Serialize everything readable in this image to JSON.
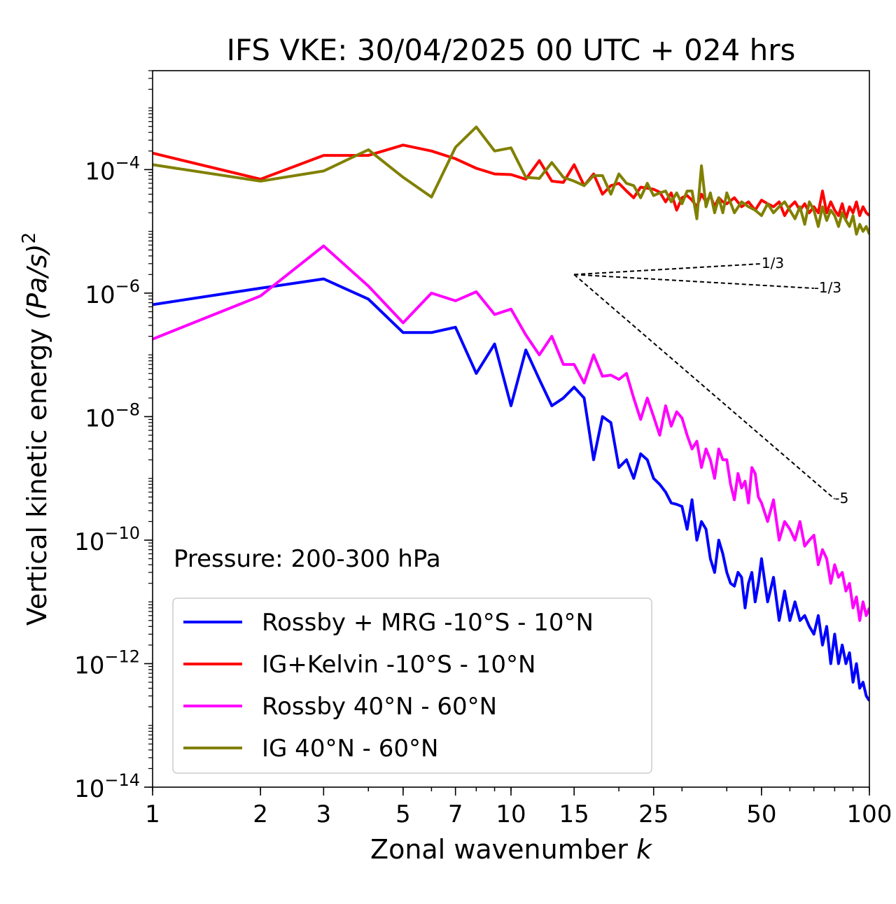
{
  "chart_data": {
    "type": "line",
    "title": "IFS VKE: 30/04/2025 00 UTC + 024 hrs",
    "xlabel": "Zonal wavenumber",
    "xlabel_symbol": "k",
    "ylabel": "Vertical kinetic energy",
    "ylabel_unit": "(Pa/s)",
    "ylabel_unit_exponent": "2",
    "xscale": "log",
    "yscale": "log",
    "xlim": [
      1,
      100
    ],
    "ylim": [
      1e-14,
      0.004
    ],
    "x_ticks": [
      1,
      2,
      3,
      5,
      7,
      10,
      15,
      25,
      50,
      100
    ],
    "x_tick_labels": [
      "1",
      "2",
      "3",
      "5",
      "7",
      "10",
      "15",
      "25",
      "50",
      "100"
    ],
    "y_ticks": [
      -14,
      -12,
      -10,
      -8,
      -6,
      -4
    ],
    "y_tick_base": "10",
    "y_tick_exponents": [
      "−14",
      "−12",
      "−10",
      "−8",
      "−6",
      "−4"
    ],
    "grid": false,
    "legend_placement": "lower-left",
    "annotation": "Pressure: 200-300 hPa",
    "slope_lines": [
      {
        "label": "1/3",
        "slope": 0.3333,
        "x0": 15,
        "y0": 2e-06,
        "x1": 50
      },
      {
        "label": "-1/3",
        "slope": -0.3333,
        "x0": 15,
        "y0": 2e-06,
        "x1": 70
      },
      {
        "label": "-5",
        "slope": -5,
        "x0": 15,
        "y0": 2e-06,
        "x1": 80
      }
    ],
    "series": [
      {
        "name": "Rossby + MRG -10°S - 10°N",
        "color": "#0000ff",
        "x": [
          1,
          2,
          3,
          4,
          5,
          6,
          7,
          8,
          9,
          10,
          11,
          12,
          13,
          14,
          15,
          16,
          17,
          18,
          19,
          20,
          21,
          22,
          23,
          24,
          25,
          26,
          27,
          28,
          29,
          30,
          31,
          32,
          33,
          34,
          35,
          36,
          37,
          38,
          39,
          40,
          41,
          42,
          43,
          44,
          45,
          46,
          47,
          48,
          49,
          50,
          52,
          54,
          56,
          58,
          60,
          62,
          64,
          66,
          68,
          70,
          72,
          74,
          76,
          78,
          80,
          82,
          84,
          86,
          88,
          90,
          92,
          94,
          96,
          98,
          100
        ],
        "y": [
          6.5e-07,
          1.2e-06,
          1.7e-06,
          8e-07,
          2.3e-07,
          2.3e-07,
          2.8e-07,
          5e-08,
          1.5e-07,
          1.5e-08,
          1.2e-07,
          4e-08,
          1.5e-08,
          2e-08,
          3e-08,
          2e-08,
          2e-09,
          1e-08,
          8e-09,
          1.5e-09,
          2e-09,
          1e-09,
          2.5e-09,
          2e-09,
          1e-09,
          8e-10,
          6e-10,
          4e-10,
          3.8e-10,
          3.5e-10,
          1.5e-10,
          4.5e-10,
          1e-10,
          2e-10,
          1.5e-10,
          5e-11,
          3e-11,
          1e-10,
          6e-11,
          3e-11,
          2e-11,
          1.8e-11,
          3e-11,
          2.5e-11,
          8e-12,
          2e-11,
          3e-11,
          1e-11,
          2e-11,
          5e-11,
          1e-11,
          2.5e-11,
          5e-12,
          1.5e-11,
          5e-12,
          1e-11,
          5e-12,
          6e-12,
          4e-12,
          3e-12,
          6e-12,
          2e-12,
          4e-12,
          1e-12,
          3e-12,
          1e-12,
          2e-12,
          1e-12,
          1.5e-12,
          5e-13,
          1e-12,
          4e-13,
          5e-13,
          3e-13,
          2.5e-13
        ]
      },
      {
        "name": "IG+Kelvin -10°S - 10°N",
        "color": "#ff0000",
        "x": [
          1,
          2,
          3,
          4,
          5,
          6,
          7,
          8,
          9,
          10,
          11,
          12,
          13,
          14,
          15,
          16,
          17,
          18,
          19,
          20,
          21,
          22,
          23,
          24,
          25,
          26,
          27,
          28,
          29,
          30,
          31,
          32,
          33,
          34,
          35,
          36,
          37,
          38,
          39,
          40,
          42,
          44,
          46,
          48,
          50,
          52,
          54,
          56,
          58,
          60,
          62,
          64,
          66,
          68,
          70,
          72,
          74,
          76,
          78,
          80,
          82,
          84,
          86,
          88,
          90,
          92,
          94,
          96,
          98,
          100
        ],
        "y": [
          0.000185,
          7e-05,
          0.00017,
          0.00017,
          0.00025,
          0.0002,
          0.00015,
          0.000105,
          8.5e-05,
          8.3e-05,
          7e-05,
          0.00014,
          6.5e-05,
          6.2e-05,
          0.00012,
          5.5e-05,
          8.5e-05,
          4e-05,
          5.5e-05,
          6e-05,
          4.5e-05,
          3.5e-05,
          5.2e-05,
          5e-05,
          4.8e-05,
          4.3e-05,
          3e-05,
          4.2e-05,
          2.2e-05,
          3.5e-05,
          3.8e-05,
          3.2e-05,
          2.5e-05,
          4e-05,
          3e-05,
          3.8e-05,
          2.5e-05,
          3.5e-05,
          3e-05,
          2.8e-05,
          3.5e-05,
          2.5e-05,
          3e-05,
          2.2e-05,
          3.2e-05,
          2.8e-05,
          2.5e-05,
          3e-05,
          1.8e-05,
          2.5e-05,
          3e-05,
          2.2e-05,
          2.8e-05,
          2e-05,
          2.5e-05,
          2e-05,
          4.5e-05,
          2e-05,
          3e-05,
          2.2e-05,
          1.8e-05,
          2.8e-05,
          1.6e-05,
          2.5e-05,
          2e-05,
          3e-05,
          1.8e-05,
          2.5e-05,
          2e-05,
          1.8e-05
        ]
      },
      {
        "name": "Rossby 40°N - 60°N",
        "color": "#ff00ff",
        "x": [
          1,
          2,
          3,
          4,
          5,
          6,
          7,
          8,
          9,
          10,
          11,
          12,
          13,
          14,
          15,
          16,
          17,
          18,
          19,
          20,
          21,
          22,
          23,
          24,
          25,
          26,
          27,
          28,
          29,
          30,
          31,
          32,
          33,
          34,
          35,
          36,
          37,
          38,
          39,
          40,
          41,
          42,
          43,
          44,
          45,
          46,
          47,
          48,
          49,
          50,
          52,
          54,
          56,
          58,
          60,
          62,
          64,
          66,
          68,
          70,
          72,
          74,
          76,
          78,
          80,
          82,
          84,
          86,
          88,
          90,
          92,
          94,
          96,
          98,
          100
        ],
        "y": [
          1.8e-07,
          9e-07,
          5.8e-06,
          1.3e-06,
          3.3e-07,
          1e-06,
          7.5e-07,
          1.05e-06,
          4.5e-07,
          5.5e-07,
          2.1e-07,
          1e-07,
          2e-07,
          7e-08,
          7e-08,
          3.5e-08,
          1e-07,
          4.5e-08,
          4.7e-08,
          4e-08,
          5e-08,
          2e-08,
          9e-09,
          2e-08,
          1e-08,
          5e-09,
          1.5e-08,
          7e-09,
          1.2e-08,
          9.5e-09,
          5e-09,
          3e-09,
          4e-09,
          1.5e-09,
          3e-09,
          2e-09,
          1e-09,
          3e-09,
          2e-09,
          2e-09,
          8e-10,
          4.5e-10,
          1.2e-09,
          7e-10,
          9e-10,
          4e-10,
          1.5e-09,
          1.2e-09,
          5e-10,
          4e-10,
          2e-10,
          4.5e-10,
          1e-10,
          2e-10,
          1.5e-10,
          1e-10,
          2e-10,
          8e-11,
          1e-10,
          1.2e-10,
          4e-11,
          7e-11,
          5e-11,
          2e-11,
          4e-11,
          2.5e-11,
          3e-11,
          1.5e-11,
          2e-11,
          8e-12,
          1.2e-11,
          5e-12,
          1e-11,
          6e-12,
          8e-12
        ]
      },
      {
        "name": "IG 40°N - 60°N",
        "color": "#808000",
        "x": [
          1,
          2,
          3,
          4,
          5,
          6,
          7,
          8,
          9,
          10,
          11,
          12,
          13,
          14,
          15,
          16,
          17,
          18,
          19,
          20,
          21,
          22,
          23,
          24,
          25,
          26,
          27,
          28,
          29,
          30,
          31,
          32,
          33,
          34,
          35,
          36,
          37,
          38,
          39,
          40,
          42,
          44,
          46,
          48,
          50,
          52,
          54,
          56,
          58,
          60,
          62,
          64,
          66,
          68,
          70,
          72,
          74,
          76,
          78,
          80,
          82,
          84,
          86,
          88,
          90,
          92,
          94,
          96,
          98,
          100
        ],
        "y": [
          0.00012,
          6.5e-05,
          9.5e-05,
          0.00021,
          7.5e-05,
          3.6e-05,
          0.00023,
          0.00049,
          0.0002,
          0.000225,
          7.5e-05,
          7.2e-05,
          0.00013,
          7.5e-05,
          6.5e-05,
          5.5e-05,
          8e-05,
          8e-05,
          4e-05,
          8.5e-05,
          6e-05,
          5.5e-05,
          3.5e-05,
          6e-05,
          3.8e-05,
          4.2e-05,
          4.5e-05,
          3e-05,
          4.2e-05,
          2.8e-05,
          4.5e-05,
          4.5e-05,
          1.6e-05,
          0.000115,
          2.5e-05,
          4.2e-05,
          2e-05,
          3.5e-05,
          2e-05,
          4.2e-05,
          2e-05,
          3e-05,
          2.5e-05,
          2.2e-05,
          1.8e-05,
          2.8e-05,
          2e-05,
          2.5e-05,
          3e-05,
          2.2e-05,
          1.6e-05,
          2.5e-05,
          1.3e-05,
          3e-05,
          2.2e-05,
          1.2e-05,
          2.5e-05,
          1.5e-05,
          2.2e-05,
          1.8e-05,
          1.2e-05,
          2e-05,
          1.5e-05,
          1.2e-05,
          1.8e-05,
          9e-06,
          1.3e-05,
          1e-05,
          1.2e-05,
          9e-06
        ]
      }
    ]
  }
}
